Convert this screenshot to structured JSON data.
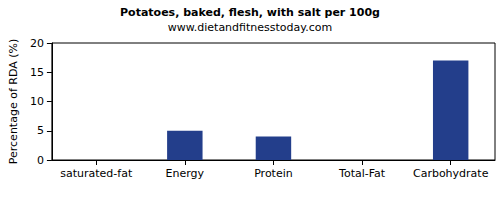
{
  "chart_data": {
    "type": "bar",
    "title": "Potatoes, baked, flesh, with salt per 100g",
    "subtitle": "www.dietandfitnesstoday.com",
    "y_label": "Percentage of RDA (%)",
    "categories": [
      "saturated-fat",
      "Energy",
      "Protein",
      "Total-Fat",
      "Carbohydrate"
    ],
    "values": [
      0,
      5,
      4,
      0,
      17
    ],
    "color": "#233e8b",
    "ylim": [
      0,
      20
    ],
    "yticks": [
      0,
      5,
      10,
      15,
      20
    ],
    "grid": false
  }
}
